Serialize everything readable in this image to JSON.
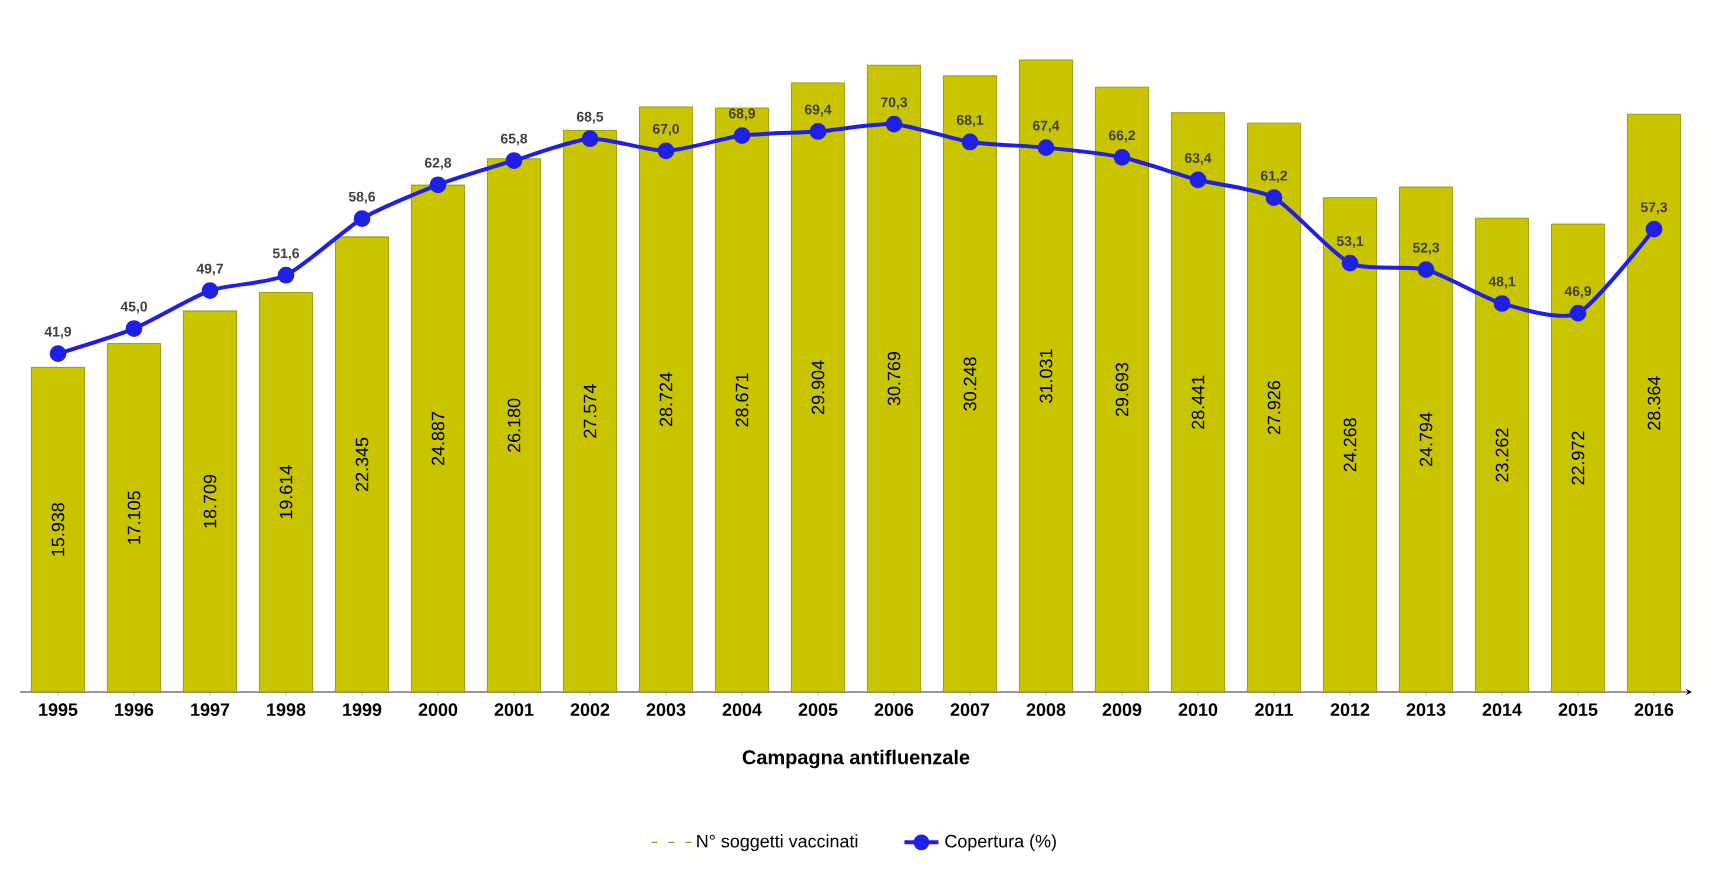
{
  "chart_data": {
    "type": "bar",
    "xlabel": "Campagna antifluenzale",
    "categories": [
      "1995",
      "1996",
      "1997",
      "1998",
      "1999",
      "2000",
      "2001",
      "2002",
      "2003",
      "2004",
      "2005",
      "2006",
      "2007",
      "2008",
      "2009",
      "2010",
      "2011",
      "2012",
      "2013",
      "2014",
      "2015",
      "2016"
    ],
    "series": [
      {
        "name": "N° soggetti vaccinati",
        "color": "#c8c400",
        "values": [
          15938,
          17105,
          18709,
          19614,
          22345,
          24887,
          26180,
          27574,
          28724,
          28671,
          29904,
          30769,
          30248,
          31031,
          29693,
          28441,
          27926,
          24268,
          24794,
          23262,
          22972,
          28364
        ],
        "value_labels": [
          "15.938",
          "17.105",
          "18.709",
          "19.614",
          "22.345",
          "24.887",
          "26.180",
          "27.574",
          "28.724",
          "28.671",
          "29.904",
          "30.769",
          "30.248",
          "31.031",
          "29.693",
          "28.441",
          "27.926",
          "24.268",
          "24.794",
          "23.262",
          "22.972",
          "28.364"
        ]
      },
      {
        "name": "Copertura (%)",
        "type": "line",
        "axis": "y2",
        "color": "#1f1fe6",
        "marker": "circle",
        "values": [
          41.9,
          45.0,
          49.7,
          51.6,
          58.6,
          62.8,
          65.8,
          68.5,
          67.0,
          68.9,
          69.4,
          70.3,
          68.1,
          67.4,
          66.2,
          63.4,
          61.2,
          53.1,
          52.3,
          48.1,
          46.9,
          57.3
        ],
        "value_labels": [
          "41,9",
          "45,0",
          "49,7",
          "51,6",
          "58,6",
          "62,8",
          "65,8",
          "68,5",
          "67,0",
          "68,9",
          "69,4",
          "70,3",
          "68,1",
          "67,4",
          "66,2",
          "63,4",
          "61,2",
          "53,1",
          "52,3",
          "48,1",
          "46,9",
          "57,3"
        ]
      }
    ],
    "legend": "bottom"
  }
}
